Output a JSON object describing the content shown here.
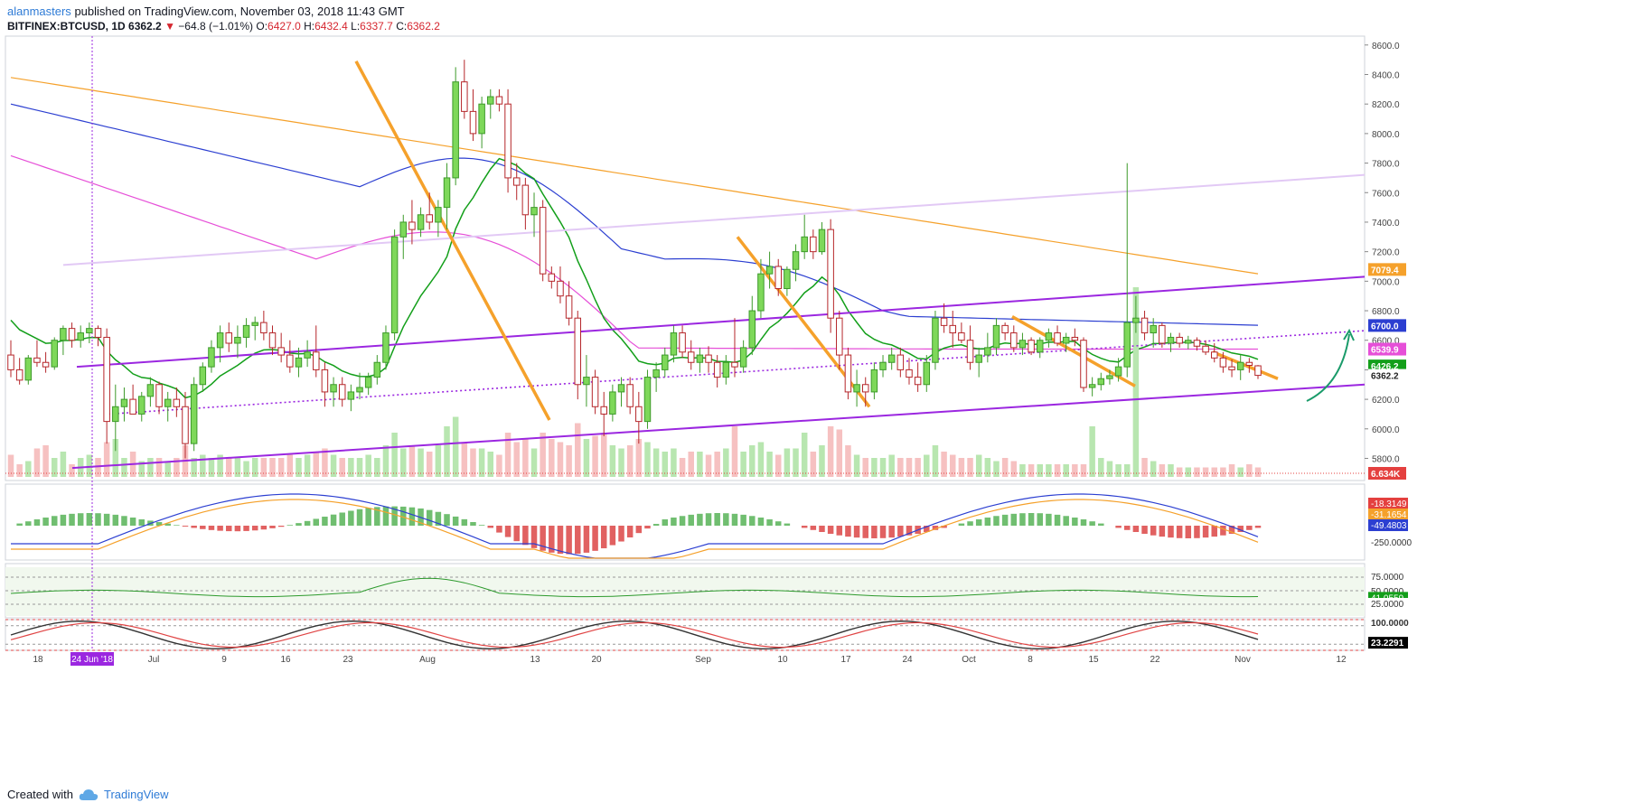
{
  "header": {
    "author": "alanmasters",
    "published_text": "published on TradingView.com, November 03, 2018 11:43 GMT",
    "symbol": "BITFINEX:BTCUSD, 1D",
    "last": "6362.2",
    "change": "−64.8 (−1.01%)",
    "open_label": "O:",
    "open": "6427.0",
    "high_label": "H:",
    "high": "6432.4",
    "low_label": "L:",
    "low": "6337.7",
    "close_label": "C:",
    "close": "6362.2"
  },
  "footer": {
    "created_with": "Created with",
    "brand": "TradingView"
  },
  "colors": {
    "up": "#7ed85a",
    "down": "#e4403f",
    "orange": "#f5a12b",
    "purple": "#9b27e0",
    "blue": "#2c3fd1",
    "pink": "#e64fd8",
    "green": "#139f1a",
    "teal": "#1a9b6a"
  },
  "chart_data": {
    "type": "candlestick",
    "y_ticks": [
      "8600.0",
      "8400.0",
      "8200.0",
      "8000.0",
      "7800.0",
      "7600.0",
      "7400.0",
      "7200.0",
      "7000.0",
      "6800.0",
      "6600.0",
      "6400.0",
      "6200.0",
      "6000.0",
      "5800.0"
    ],
    "ylim": [
      5650,
      8660
    ],
    "x_labels": [
      "18",
      "24 Jun '18",
      "Jul",
      "9",
      "16",
      "23",
      "Aug",
      "13",
      "20",
      "Sep",
      "10",
      "17",
      "24",
      "Oct",
      "8",
      "15",
      "22",
      "Nov",
      "12"
    ],
    "price_badges": [
      {
        "value": "7079.4",
        "color": "#f5a12b"
      },
      {
        "value": "6700.0",
        "color": "#2c3fd1"
      },
      {
        "value": "6539.9",
        "color": "#e64fd8"
      },
      {
        "value": "6426.2",
        "color": "#139f1a"
      },
      {
        "value": "6362.2",
        "color": "#ffffff"
      },
      {
        "value": "6.634K",
        "color": "#e4403f"
      }
    ],
    "candles_ohlc": [
      [
        6500,
        6600,
        6350,
        6400
      ],
      [
        6400,
        6480,
        6300,
        6330
      ],
      [
        6330,
        6500,
        6300,
        6480
      ],
      [
        6480,
        6600,
        6420,
        6450
      ],
      [
        6450,
        6520,
        6380,
        6420
      ],
      [
        6420,
        6620,
        6400,
        6600
      ],
      [
        6600,
        6700,
        6500,
        6680
      ],
      [
        6680,
        6720,
        6550,
        6600
      ],
      [
        6600,
        6700,
        6550,
        6650
      ],
      [
        6650,
        6720,
        6580,
        6680
      ],
      [
        6680,
        6700,
        6560,
        6620
      ],
      [
        6620,
        6680,
        5900,
        6050
      ],
      [
        6050,
        6300,
        5850,
        6150
      ],
      [
        6150,
        6280,
        6050,
        6200
      ],
      [
        6200,
        6300,
        6100,
        6100
      ],
      [
        6100,
        6250,
        6050,
        6220
      ],
      [
        6220,
        6350,
        6150,
        6300
      ],
      [
        6300,
        6320,
        6100,
        6150
      ],
      [
        6150,
        6250,
        6050,
        6200
      ],
      [
        6200,
        6280,
        6080,
        6150
      ],
      [
        6150,
        6250,
        5800,
        5900
      ],
      [
        5900,
        6350,
        5850,
        6300
      ],
      [
        6300,
        6450,
        6250,
        6420
      ],
      [
        6420,
        6600,
        6380,
        6550
      ],
      [
        6550,
        6700,
        6450,
        6650
      ],
      [
        6650,
        6720,
        6520,
        6580
      ],
      [
        6580,
        6700,
        6480,
        6620
      ],
      [
        6620,
        6750,
        6550,
        6700
      ],
      [
        6700,
        6760,
        6600,
        6720
      ],
      [
        6720,
        6800,
        6600,
        6650
      ],
      [
        6650,
        6700,
        6500,
        6550
      ],
      [
        6550,
        6650,
        6450,
        6500
      ],
      [
        6500,
        6600,
        6380,
        6420
      ],
      [
        6420,
        6550,
        6350,
        6480
      ],
      [
        6480,
        6600,
        6420,
        6520
      ],
      [
        6520,
        6700,
        6350,
        6400
      ],
      [
        6400,
        6450,
        6150,
        6250
      ],
      [
        6250,
        6350,
        6150,
        6300
      ],
      [
        6300,
        6350,
        6150,
        6200
      ],
      [
        6200,
        6300,
        6120,
        6250
      ],
      [
        6250,
        6380,
        6200,
        6280
      ],
      [
        6280,
        6380,
        6230,
        6350
      ],
      [
        6350,
        6500,
        6300,
        6450
      ],
      [
        6450,
        6700,
        6400,
        6650
      ],
      [
        6650,
        7350,
        6600,
        7300
      ],
      [
        7300,
        7450,
        7150,
        7400
      ],
      [
        7400,
        7550,
        7250,
        7350
      ],
      [
        7350,
        7500,
        7300,
        7450
      ],
      [
        7450,
        7600,
        7350,
        7400
      ],
      [
        7400,
        7550,
        7300,
        7500
      ],
      [
        7500,
        7800,
        7350,
        7700
      ],
      [
        7700,
        8450,
        7650,
        8350
      ],
      [
        8350,
        8500,
        8100,
        8150
      ],
      [
        8150,
        8300,
        7950,
        8000
      ],
      [
        8000,
        8250,
        7900,
        8200
      ],
      [
        8200,
        8300,
        8100,
        8250
      ],
      [
        8250,
        8300,
        8150,
        8200
      ],
      [
        8200,
        8300,
        7600,
        7700
      ],
      [
        7700,
        7800,
        7550,
        7650
      ],
      [
        7650,
        7700,
        7350,
        7450
      ],
      [
        7450,
        7600,
        7300,
        7500
      ],
      [
        7500,
        7550,
        7000,
        7050
      ],
      [
        7050,
        7100,
        6950,
        7000
      ],
      [
        7000,
        7100,
        6850,
        6900
      ],
      [
        6900,
        7000,
        6700,
        6750
      ],
      [
        6750,
        6800,
        6200,
        6300
      ],
      [
        6300,
        6500,
        6150,
        6350
      ],
      [
        6350,
        6400,
        6100,
        6150
      ],
      [
        6150,
        6250,
        5950,
        6100
      ],
      [
        6100,
        6300,
        6050,
        6250
      ],
      [
        6250,
        6350,
        6150,
        6300
      ],
      [
        6300,
        6350,
        6100,
        6150
      ],
      [
        6150,
        6250,
        5900,
        6050
      ],
      [
        6050,
        6400,
        6000,
        6350
      ],
      [
        6350,
        6450,
        6250,
        6400
      ],
      [
        6400,
        6550,
        6350,
        6500
      ],
      [
        6500,
        6700,
        6450,
        6650
      ],
      [
        6650,
        6700,
        6480,
        6520
      ],
      [
        6520,
        6600,
        6400,
        6450
      ],
      [
        6450,
        6550,
        6380,
        6500
      ],
      [
        6500,
        6560,
        6380,
        6450
      ],
      [
        6450,
        6500,
        6280,
        6350
      ],
      [
        6350,
        6500,
        6300,
        6450
      ],
      [
        6450,
        6750,
        6350,
        6420
      ],
      [
        6420,
        6600,
        6380,
        6550
      ],
      [
        6550,
        6900,
        6500,
        6800
      ],
      [
        6800,
        7150,
        6750,
        7050
      ],
      [
        7050,
        7200,
        6950,
        7100
      ],
      [
        7100,
        7150,
        6900,
        6950
      ],
      [
        6950,
        7100,
        6900,
        7080
      ],
      [
        7080,
        7250,
        7000,
        7200
      ],
      [
        7200,
        7450,
        7150,
        7300
      ],
      [
        7300,
        7350,
        7150,
        7200
      ],
      [
        7200,
        7400,
        7180,
        7350
      ],
      [
        7350,
        7420,
        6650,
        6750
      ],
      [
        6750,
        6800,
        6400,
        6500
      ],
      [
        6500,
        6550,
        6200,
        6250
      ],
      [
        6250,
        6400,
        6150,
        6300
      ],
      [
        6300,
        6350,
        6150,
        6250
      ],
      [
        6250,
        6450,
        6200,
        6400
      ],
      [
        6400,
        6500,
        6350,
        6450
      ],
      [
        6450,
        6550,
        6400,
        6500
      ],
      [
        6500,
        6550,
        6350,
        6400
      ],
      [
        6400,
        6480,
        6300,
        6350
      ],
      [
        6350,
        6450,
        6250,
        6300
      ],
      [
        6300,
        6500,
        6250,
        6450
      ],
      [
        6450,
        6800,
        6400,
        6750
      ],
      [
        6750,
        6850,
        6650,
        6700
      ],
      [
        6700,
        6800,
        6550,
        6650
      ],
      [
        6650,
        6720,
        6580,
        6600
      ],
      [
        6600,
        6700,
        6400,
        6450
      ],
      [
        6450,
        6550,
        6350,
        6500
      ],
      [
        6500,
        6650,
        6450,
        6550
      ],
      [
        6550,
        6750,
        6500,
        6700
      ],
      [
        6700,
        6720,
        6600,
        6650
      ],
      [
        6650,
        6700,
        6520,
        6550
      ],
      [
        6550,
        6650,
        6500,
        6600
      ],
      [
        6600,
        6620,
        6500,
        6520
      ],
      [
        6520,
        6620,
        6480,
        6600
      ],
      [
        6600,
        6680,
        6550,
        6650
      ],
      [
        6650,
        6700,
        6560,
        6580
      ],
      [
        6580,
        6650,
        6520,
        6620
      ],
      [
        6620,
        6680,
        6560,
        6600
      ],
      [
        6600,
        6620,
        6250,
        6280
      ],
      [
        6280,
        6350,
        6220,
        6300
      ],
      [
        6300,
        6380,
        6260,
        6340
      ],
      [
        6340,
        6400,
        6300,
        6360
      ],
      [
        6360,
        6480,
        6320,
        6420
      ],
      [
        6420,
        7800,
        6350,
        6720
      ],
      [
        6720,
        6900,
        6650,
        6750
      ],
      [
        6750,
        6800,
        6600,
        6650
      ],
      [
        6650,
        6750,
        6550,
        6700
      ],
      [
        6700,
        6720,
        6550,
        6580
      ],
      [
        6580,
        6650,
        6520,
        6620
      ],
      [
        6620,
        6650,
        6550,
        6580
      ],
      [
        6580,
        6630,
        6540,
        6600
      ],
      [
        6600,
        6620,
        6530,
        6560
      ],
      [
        6560,
        6600,
        6500,
        6520
      ],
      [
        6520,
        6580,
        6450,
        6480
      ],
      [
        6480,
        6520,
        6380,
        6420
      ],
      [
        6420,
        6470,
        6350,
        6400
      ],
      [
        6400,
        6500,
        6330,
        6450
      ],
      [
        6450,
        6480,
        6380,
        6430
      ],
      [
        6427,
        6432.4,
        6337.7,
        6362.2
      ]
    ],
    "panels": [
      {
        "name": "MACD",
        "badges": [
          "-18.3149",
          "-31.1654",
          "-49.4803",
          "-250.0000"
        ]
      },
      {
        "name": "RSI",
        "badges": [
          "75.0000",
          "50.0000",
          "41.0559",
          "25.0000"
        ]
      },
      {
        "name": "Stoch",
        "badges": [
          "100.0000",
          "23.2291"
        ]
      }
    ]
  }
}
